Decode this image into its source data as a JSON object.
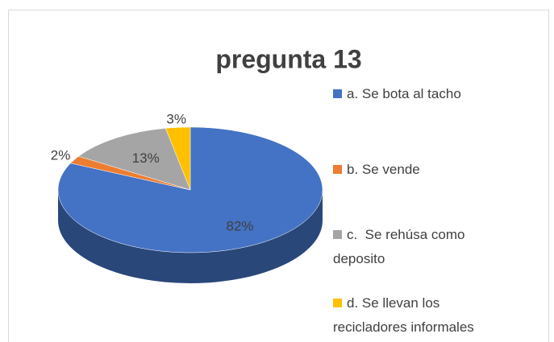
{
  "chart_data": {
    "type": "pie",
    "title": "pregunta 13",
    "categories": [
      "a. Se bota al tacho",
      "b. Se vende",
      "c.  Se rehúsa como deposito",
      "d. Se llevan los recicladores informales"
    ],
    "values": [
      82,
      2,
      13,
      3
    ],
    "value_labels": [
      "82%",
      "2%",
      "13%",
      "3%"
    ],
    "colors": [
      "#4472c4",
      "#ed7d31",
      "#a5a5a5",
      "#ffc000"
    ],
    "legend": "right"
  }
}
